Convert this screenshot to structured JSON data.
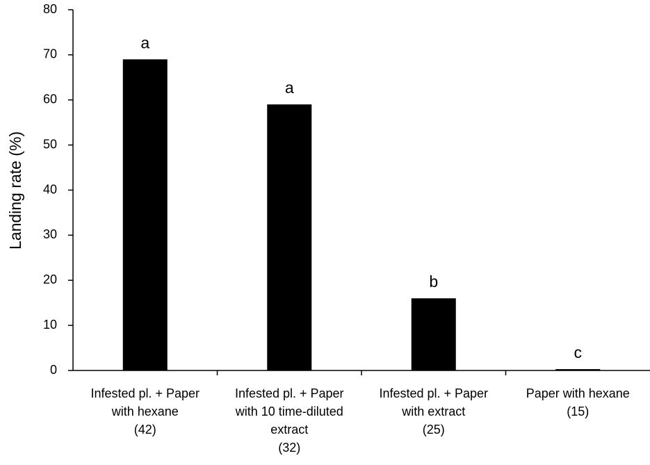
{
  "chart_data": {
    "type": "bar",
    "y_label": "Landing rate (%)",
    "categories": [
      "Infested pl. + Paper\nwith hexane\n(42)",
      "Infested pl. + Paper\nwith 10 time-diluted\nextract\n(32)",
      "Infested pl. + Paper\nwith extract\n(25)",
      "Paper with hexane\n(15)"
    ],
    "values": [
      69,
      59,
      16,
      0.3
    ],
    "annotations": [
      "a",
      "a",
      "b",
      "c"
    ],
    "color": "#000000",
    "ylim": [
      0,
      80
    ],
    "yticks": [
      0,
      10,
      20,
      30,
      40,
      50,
      60,
      70,
      80
    ],
    "grid": false
  }
}
